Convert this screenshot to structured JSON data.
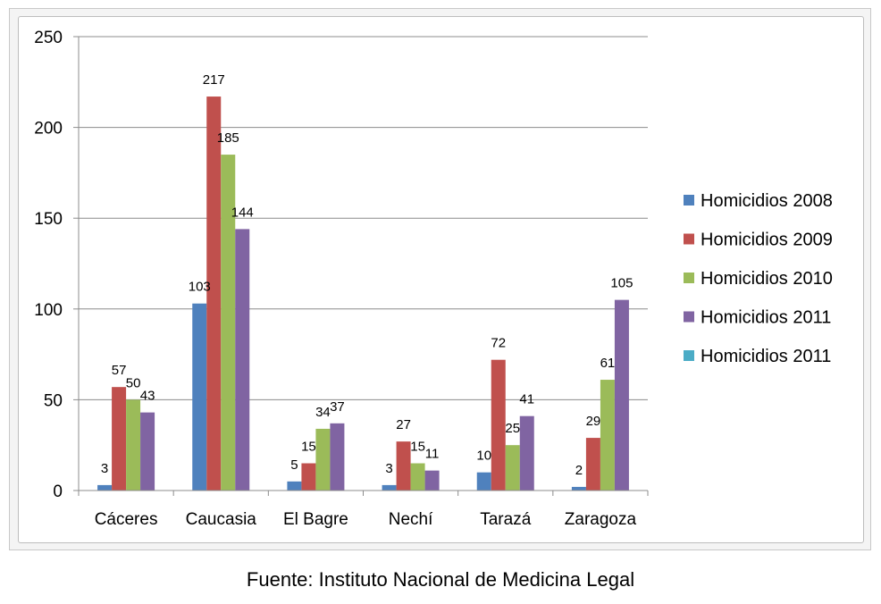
{
  "chart_data": {
    "type": "bar",
    "categories": [
      "Cáceres",
      "Caucasia",
      "El Bagre",
      "Nechí",
      "Tarazá",
      "Zaragoza"
    ],
    "series": [
      {
        "name": "Homicidios 2008",
        "color": "#4f81bd",
        "values": [
          3,
          103,
          5,
          3,
          10,
          2
        ]
      },
      {
        "name": "Homicidios 2009",
        "color": "#c0504d",
        "values": [
          57,
          217,
          15,
          27,
          72,
          29
        ]
      },
      {
        "name": "Homicidios 2010",
        "color": "#9bbb59",
        "values": [
          50,
          185,
          34,
          15,
          25,
          61
        ]
      },
      {
        "name": "Homicidios 2011",
        "color": "#8064a2",
        "values": [
          43,
          144,
          37,
          11,
          41,
          105
        ]
      },
      {
        "name": "Homicidios 2011",
        "color": "#4bacc6",
        "values": [
          null,
          null,
          null,
          null,
          null,
          null
        ]
      }
    ],
    "yticks": [
      "0",
      "50",
      "100",
      "150",
      "200",
      "250"
    ],
    "ylim": [
      0,
      250
    ],
    "grid": true,
    "legend": "right"
  },
  "source": "Fuente: Instituto Nacional de Medicina Legal"
}
